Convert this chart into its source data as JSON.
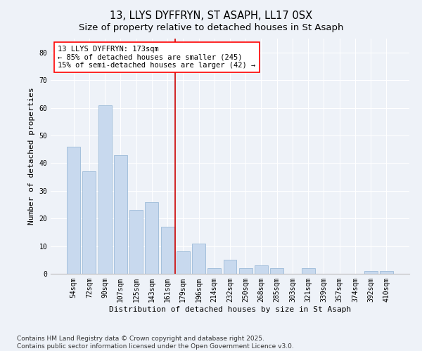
{
  "title": "13, LLYS DYFFRYN, ST ASAPH, LL17 0SX",
  "subtitle": "Size of property relative to detached houses in St Asaph",
  "xlabel": "Distribution of detached houses by size in St Asaph",
  "ylabel": "Number of detached properties",
  "bar_color": "#c8d9ee",
  "bar_edge_color": "#9dbbd8",
  "categories": [
    "54sqm",
    "72sqm",
    "90sqm",
    "107sqm",
    "125sqm",
    "143sqm",
    "161sqm",
    "179sqm",
    "196sqm",
    "214sqm",
    "232sqm",
    "250sqm",
    "268sqm",
    "285sqm",
    "303sqm",
    "321sqm",
    "339sqm",
    "357sqm",
    "374sqm",
    "392sqm",
    "410sqm"
  ],
  "values": [
    46,
    37,
    61,
    43,
    23,
    26,
    17,
    8,
    11,
    2,
    5,
    2,
    3,
    2,
    0,
    2,
    0,
    0,
    0,
    1,
    1
  ],
  "vline_color": "#cc0000",
  "vline_index": 7,
  "annotation_text": "13 LLYS DYFFRYN: 173sqm\n← 85% of detached houses are smaller (245)\n15% of semi-detached houses are larger (42) →",
  "ylim": [
    0,
    85
  ],
  "yticks": [
    0,
    10,
    20,
    30,
    40,
    50,
    60,
    70,
    80
  ],
  "footer": "Contains HM Land Registry data © Crown copyright and database right 2025.\nContains public sector information licensed under the Open Government Licence v3.0.",
  "bg_color": "#eef2f8",
  "plot_bg_color": "#eef2f8",
  "grid_color": "#ffffff",
  "title_fontsize": 10.5,
  "subtitle_fontsize": 9.5,
  "tick_fontsize": 7,
  "label_fontsize": 8,
  "footer_fontsize": 6.5,
  "annotation_fontsize": 7.5
}
